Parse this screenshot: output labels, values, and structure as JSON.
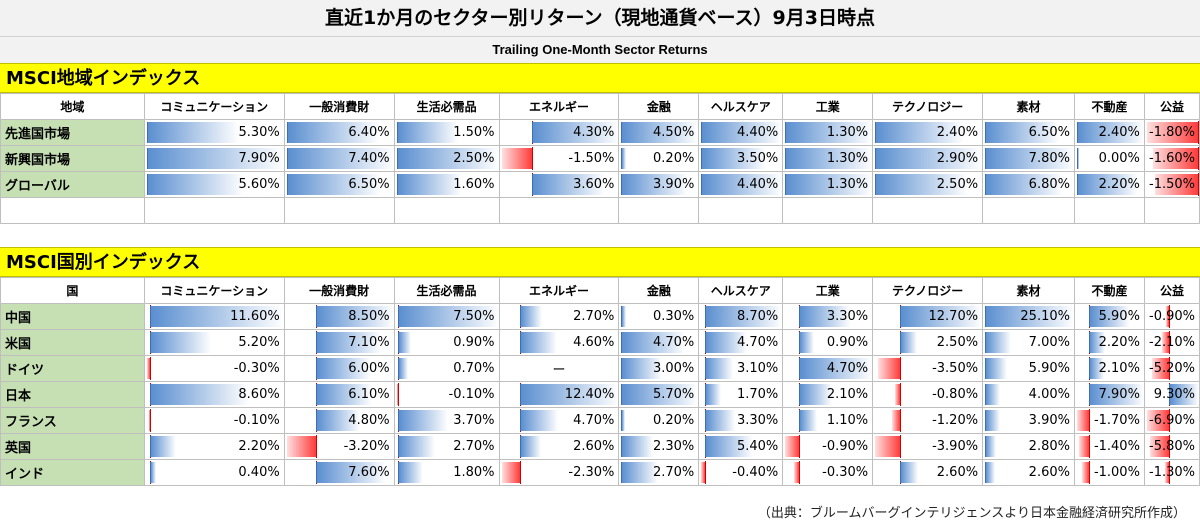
{
  "title": "直近1か月のセクター別リターン（現地通貨ベース）9月3日時点",
  "subtitle": "Trailing One-Month Sector Returns",
  "source": "（出典：ブルームバーグインテリジェンスより日本金融経済研究所作成）",
  "chart_data": [
    {
      "type": "table",
      "title": "MSCI地域インデックス",
      "row_header": "地域",
      "columns": [
        "コミュニケーション",
        "一般消費財",
        "生活必需品",
        "エネルギー",
        "金融",
        "ヘルスケア",
        "工業",
        "テクノロジー",
        "素材",
        "不動産",
        "公益"
      ],
      "rows": [
        {
          "label": "先進国市場",
          "values": [
            5.3,
            6.4,
            1.5,
            4.3,
            4.5,
            4.4,
            1.3,
            2.4,
            6.5,
            2.4,
            -1.8
          ]
        },
        {
          "label": "新興国市場",
          "values": [
            7.9,
            7.4,
            2.5,
            -1.5,
            0.2,
            3.5,
            1.3,
            2.9,
            7.8,
            0.0,
            -1.6
          ]
        },
        {
          "label": "グローバル",
          "values": [
            5.6,
            6.5,
            1.6,
            3.6,
            3.9,
            4.4,
            1.3,
            2.5,
            6.8,
            2.2,
            -1.5
          ]
        }
      ],
      "unit": "%"
    },
    {
      "type": "table",
      "title": "MSCI国別インデックス",
      "row_header": "国",
      "columns": [
        "コミュニケーション",
        "一般消費財",
        "生活必需品",
        "エネルギー",
        "金融",
        "ヘルスケア",
        "工業",
        "テクノロジー",
        "素材",
        "不動産",
        "公益"
      ],
      "rows": [
        {
          "label": "中国",
          "values": [
            11.6,
            8.5,
            7.5,
            2.7,
            0.3,
            8.7,
            3.3,
            12.7,
            25.1,
            5.9,
            -0.9
          ]
        },
        {
          "label": "米国",
          "values": [
            5.2,
            7.1,
            0.9,
            4.6,
            4.7,
            4.7,
            0.9,
            2.5,
            7.0,
            2.2,
            -2.1
          ]
        },
        {
          "label": "ドイツ",
          "values": [
            -0.3,
            6.0,
            0.7,
            null,
            3.0,
            3.1,
            4.7,
            -3.5,
            5.9,
            2.1,
            -5.2
          ]
        },
        {
          "label": "日本",
          "values": [
            8.6,
            6.1,
            -0.1,
            12.4,
            5.7,
            1.7,
            2.1,
            -0.8,
            4.0,
            7.9,
            9.3
          ]
        },
        {
          "label": "フランス",
          "values": [
            -0.1,
            4.8,
            3.7,
            4.7,
            0.2,
            3.3,
            1.1,
            -1.2,
            3.9,
            -1.7,
            -6.9
          ]
        },
        {
          "label": "英国",
          "values": [
            2.2,
            -3.2,
            2.7,
            2.6,
            2.3,
            5.4,
            -0.9,
            -3.9,
            2.8,
            -1.4,
            -5.8
          ]
        },
        {
          "label": "インド",
          "values": [
            0.4,
            7.6,
            1.8,
            -2.3,
            2.7,
            -0.4,
            -0.3,
            2.6,
            2.6,
            -1.0,
            -1.3
          ]
        }
      ],
      "missing_mark": "ー",
      "unit": "%"
    }
  ]
}
